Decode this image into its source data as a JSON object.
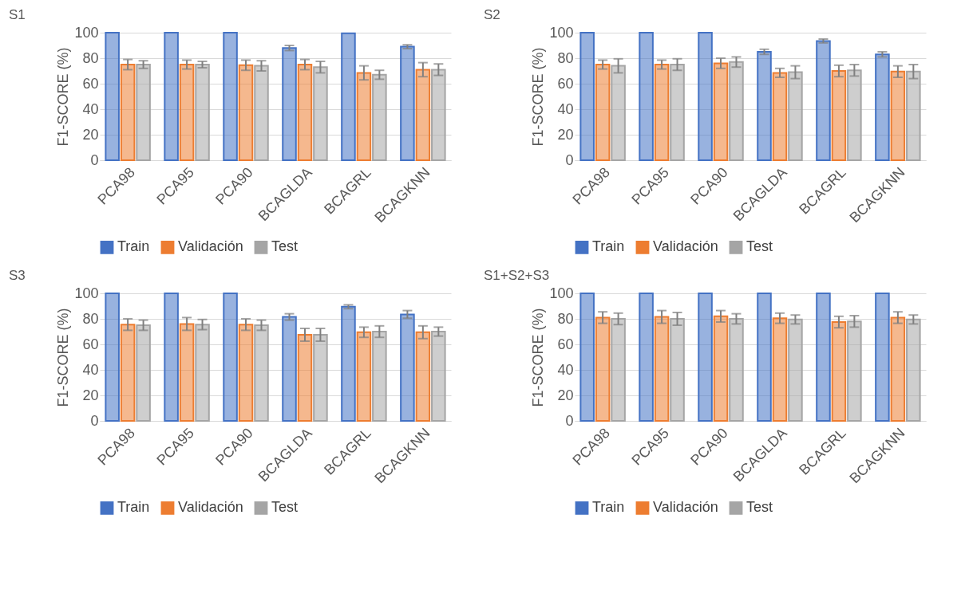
{
  "chart_data": [
    {
      "type": "bar",
      "title": "S1",
      "ylabel": "F1-SCORE (%)",
      "categories": [
        "PCA98",
        "PCA95",
        "PCA90",
        "BCAGLDA",
        "BCAGRL",
        "BCAGKNN"
      ],
      "ylim": [
        0,
        100
      ],
      "yticks": [
        0,
        20,
        40,
        60,
        80,
        100
      ],
      "grid": "y",
      "legend": "bottom",
      "series": [
        {
          "name": "Train",
          "color": "#4472c4",
          "values": [
            100,
            100,
            100,
            88,
            99.5,
            89
          ],
          "errors": [
            null,
            null,
            null,
            2,
            null,
            1.5
          ]
        },
        {
          "name": "Validación",
          "color": "#ed7d31",
          "values": [
            75,
            75,
            74.5,
            75,
            68.5,
            71
          ],
          "errors": [
            4,
            3.5,
            4,
            4,
            5.5,
            5.5
          ]
        },
        {
          "name": "Test",
          "color": "#a5a5a5",
          "values": [
            75,
            75,
            74,
            73,
            67,
            71
          ],
          "errors": [
            3,
            2.5,
            4,
            4.5,
            3.5,
            4.5
          ]
        }
      ]
    },
    {
      "type": "bar",
      "title": "S2",
      "ylabel": "F1-SCORE (%)",
      "categories": [
        "PCA98",
        "PCA95",
        "PCA90",
        "BCAGLDA",
        "BCAGRL",
        "BCAGKNN"
      ],
      "ylim": [
        0,
        100
      ],
      "yticks": [
        0,
        20,
        40,
        60,
        80,
        100
      ],
      "grid": "y",
      "legend": "bottom",
      "series": [
        {
          "name": "Train",
          "color": "#4472c4",
          "values": [
            100,
            100,
            100,
            85,
            93.5,
            83
          ],
          "errors": [
            null,
            null,
            null,
            2,
            1.5,
            2
          ]
        },
        {
          "name": "Validación",
          "color": "#ed7d31",
          "values": [
            75,
            75,
            76,
            68.5,
            70,
            69.5
          ],
          "errors": [
            3.5,
            3.5,
            4,
            3.5,
            4.5,
            4.5
          ]
        },
        {
          "name": "Test",
          "color": "#a5a5a5",
          "values": [
            74,
            75,
            77,
            69,
            70.5,
            69.5
          ],
          "errors": [
            5.5,
            4.5,
            4,
            5,
            4.5,
            5.5
          ]
        }
      ]
    },
    {
      "type": "bar",
      "title": "S3",
      "ylabel": "F1-SCORE (%)",
      "categories": [
        "PCA98",
        "PCA95",
        "PCA90",
        "BCAGLDA",
        "BCAGRL",
        "BCAGKNN"
      ],
      "ylim": [
        0,
        100
      ],
      "yticks": [
        0,
        20,
        40,
        60,
        80,
        100
      ],
      "grid": "y",
      "legend": "bottom",
      "series": [
        {
          "name": "Train",
          "color": "#4472c4",
          "values": [
            100,
            100,
            100,
            81.5,
            89.5,
            83.5
          ],
          "errors": [
            null,
            null,
            null,
            2.5,
            1.5,
            3
          ]
        },
        {
          "name": "Validación",
          "color": "#ed7d31",
          "values": [
            75.5,
            76,
            75.5,
            67.5,
            69.5,
            69.5
          ],
          "errors": [
            4.5,
            5,
            4.5,
            5,
            4,
            5
          ]
        },
        {
          "name": "Test",
          "color": "#a5a5a5",
          "values": [
            75,
            75.5,
            75,
            67.5,
            70,
            70
          ],
          "errors": [
            4,
            4,
            4,
            5,
            4.5,
            3.5
          ]
        }
      ]
    },
    {
      "type": "bar",
      "title": "S1+S2+S3",
      "ylabel": "F1-SCORE (%)",
      "categories": [
        "PCA98",
        "PCA95",
        "PCA90",
        "BCAGLDA",
        "BCAGRL",
        "BCAGKNN"
      ],
      "ylim": [
        0,
        100
      ],
      "yticks": [
        0,
        20,
        40,
        60,
        80,
        100
      ],
      "grid": "y",
      "legend": "bottom",
      "series": [
        {
          "name": "Train",
          "color": "#4472c4",
          "values": [
            100,
            100,
            100,
            100,
            100,
            100
          ],
          "errors": [
            null,
            null,
            null,
            null,
            null,
            null
          ]
        },
        {
          "name": "Validación",
          "color": "#ed7d31",
          "values": [
            81,
            81.5,
            82,
            80.5,
            77.5,
            81
          ],
          "errors": [
            4.5,
            5,
            4.5,
            4,
            4.5,
            4.5
          ]
        },
        {
          "name": "Test",
          "color": "#a5a5a5",
          "values": [
            80,
            80,
            80,
            79.5,
            78,
            79.5
          ],
          "errors": [
            4.5,
            5,
            4,
            3.5,
            4.5,
            3.5
          ]
        }
      ]
    }
  ]
}
